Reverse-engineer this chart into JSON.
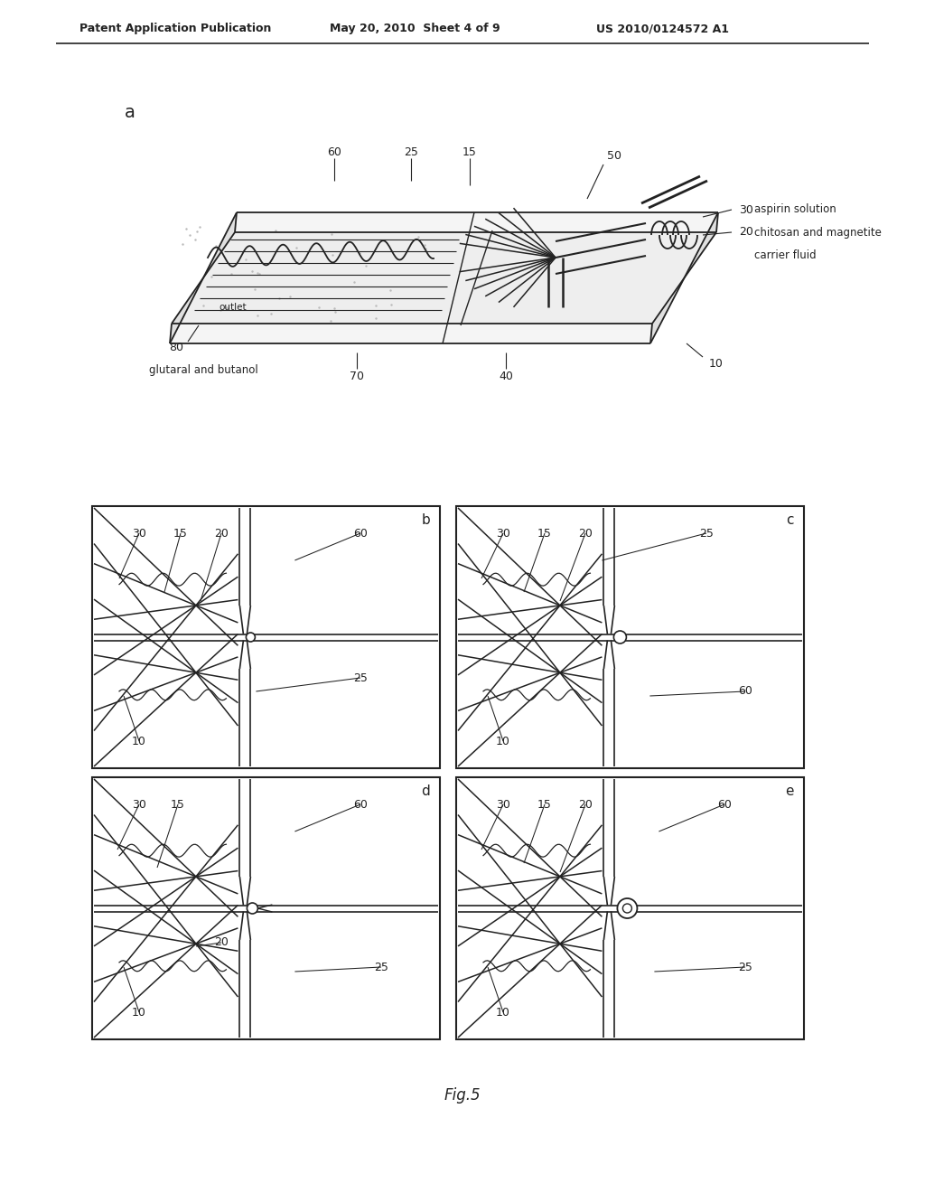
{
  "header_left": "Patent Application Publication",
  "header_mid": "May 20, 2010  Sheet 4 of 9",
  "header_right": "US 2010/0124572 A1",
  "fig_label": "Fig.5",
  "bg_color": "#ffffff",
  "line_color": "#222222",
  "label_a": "a",
  "panel_labels": [
    "b",
    "c",
    "d",
    "e"
  ]
}
